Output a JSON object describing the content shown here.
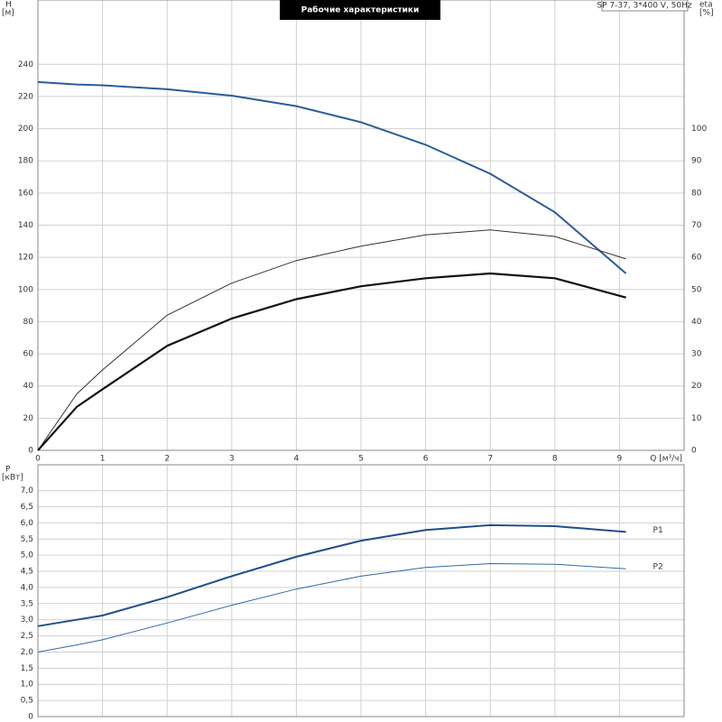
{
  "chart_data": [
    {
      "type": "line",
      "title": "Рабочие характеристики",
      "annotation": "SP 7-37, 3*400 V, 50Hz",
      "ylabel": "H",
      "yunit": "[м]",
      "y2label": "eta",
      "y2unit": "[%]",
      "xlabel": "Q [м³/ч]",
      "x": [
        0,
        0.6,
        1,
        2,
        3,
        4,
        5,
        6,
        7,
        8,
        9.1
      ],
      "xlim": [
        0,
        10
      ],
      "xticks": [
        0,
        1,
        2,
        3,
        4,
        5,
        6,
        7,
        8,
        9
      ],
      "ylim": [
        0,
        280
      ],
      "yticks": [
        0,
        20,
        40,
        60,
        80,
        100,
        120,
        140,
        160,
        180,
        200,
        220,
        240
      ],
      "y2lim": [
        0,
        140
      ],
      "y2ticks": [
        0,
        10,
        20,
        30,
        40,
        50,
        60,
        70,
        80,
        90,
        100
      ],
      "grid": true,
      "series": [
        {
          "color": "#2a5d9a",
          "width": 2,
          "values": [
            229,
            227.5,
            227,
            224.5,
            220.5,
            214,
            204,
            190,
            172,
            148,
            110
          ]
        },
        {
          "color": "#333333",
          "width": 1,
          "axis": "y2",
          "values": [
            0,
            17.5,
            25,
            42,
            52,
            59,
            63.5,
            67,
            68.5,
            66.5,
            59.5
          ]
        },
        {
          "color": "#111111",
          "width": 2.2,
          "axis": "y2",
          "values": [
            0,
            13.5,
            19,
            32.5,
            41,
            47,
            51,
            53.5,
            55,
            53.5,
            47.5
          ]
        }
      ]
    },
    {
      "type": "line",
      "ylabel": "P",
      "yunit": "[кВт]",
      "x": [
        0,
        0.6,
        1,
        2,
        3,
        4,
        5,
        6,
        7,
        8,
        9.1
      ],
      "xlim": [
        0,
        10
      ],
      "ylim": [
        0,
        7.8
      ],
      "yticks": [
        {
          "value": 0,
          "label": "0"
        },
        {
          "value": 0.5,
          "label": "0,5"
        },
        {
          "value": 1,
          "label": "1,0"
        },
        {
          "value": 1.5,
          "label": "1,5"
        },
        {
          "value": 2,
          "label": "2,0"
        },
        {
          "value": 2.5,
          "label": "2,5"
        },
        {
          "value": 3,
          "label": "3,0"
        },
        {
          "value": 3.5,
          "label": "3,5"
        },
        {
          "value": 4,
          "label": "4,0"
        },
        {
          "value": 4.5,
          "label": "4,5"
        },
        {
          "value": 5,
          "label": "5,0"
        },
        {
          "value": 5.5,
          "label": "5,5"
        },
        {
          "value": 6,
          "label": "6,0"
        },
        {
          "value": 6.5,
          "label": "6,5"
        },
        {
          "value": 7,
          "label": "7,0"
        }
      ],
      "grid": true,
      "series": [
        {
          "name": "P1",
          "color": "#1f4e8c",
          "width": 2,
          "values": [
            2.8,
            3.0,
            3.13,
            3.7,
            4.35,
            4.95,
            5.45,
            5.78,
            5.93,
            5.9,
            5.72
          ]
        },
        {
          "name": "P2",
          "color": "#2f6aa8",
          "width": 1,
          "values": [
            2.0,
            2.22,
            2.38,
            2.9,
            3.45,
            3.95,
            4.35,
            4.62,
            4.74,
            4.72,
            4.58
          ]
        }
      ]
    }
  ]
}
